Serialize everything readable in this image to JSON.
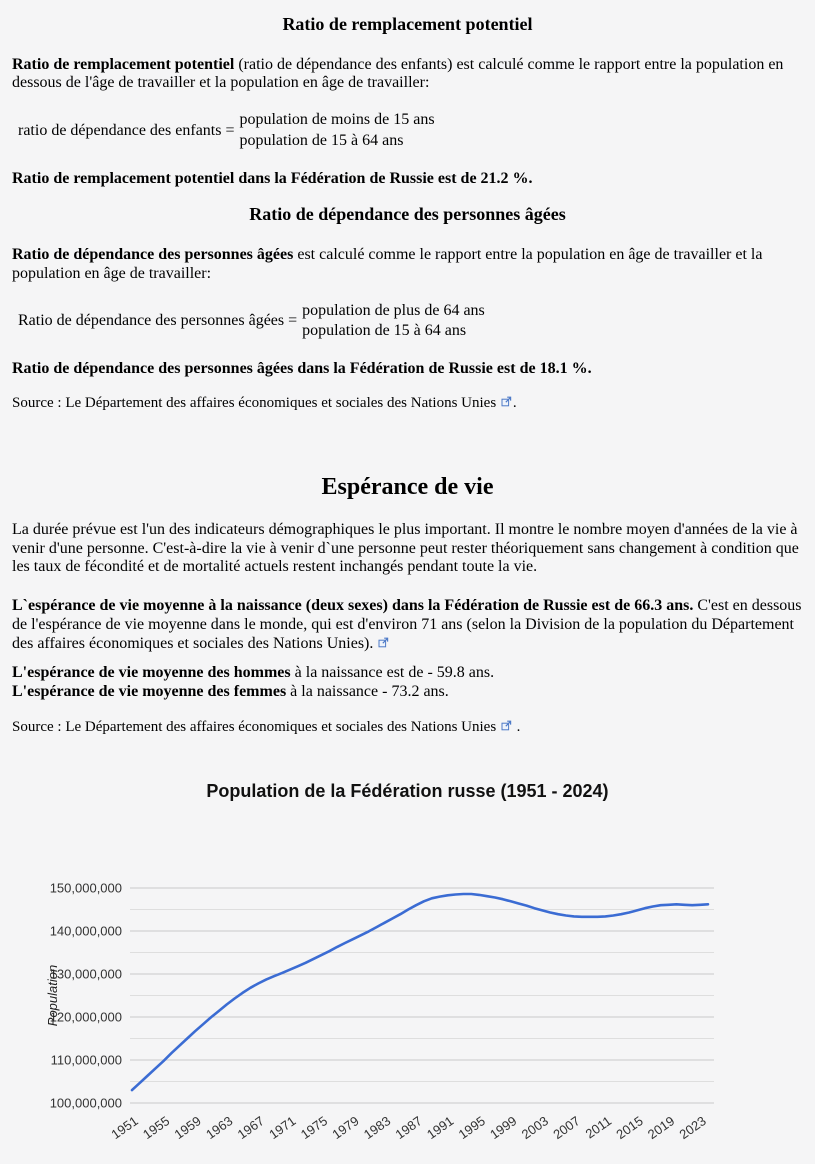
{
  "replacement_section": {
    "heading": "Ratio de remplacement potentiel",
    "definition_bold": "Ratio de remplacement potentiel",
    "definition_rest": " (ratio de dépendance des enfants) est calculé comme le rapport entre la population en dessous de l'âge de travailler et la population en âge de travailler:",
    "formula_label": "ratio de dépendance des enfants =",
    "formula_numerator": "population de moins de 15 ans",
    "formula_denominator": "population de 15 à 64 ans",
    "result": "Ratio de remplacement potentiel dans la Fédération de Russie est de 21.2 %."
  },
  "old_age_section": {
    "heading": "Ratio de dépendance des personnes âgées",
    "definition_bold": "Ratio de dépendance des personnes âgées",
    "definition_rest": " est calculé comme le rapport entre la population en âge de travailler et la population en âge de travailler:",
    "formula_label": "Ratio de dépendance des personnes âgées =",
    "formula_numerator": "population de plus de 64 ans",
    "formula_denominator": "population de 15 à 64 ans",
    "result": "Ratio de dépendance des personnes âgées dans la Fédération de Russie est de 18.1 %."
  },
  "source_line_1": {
    "prefix": "Source : ",
    "link_text": "Le Département des affaires économiques et sociales des Nations Unies",
    "suffix": "."
  },
  "life_expectancy_section": {
    "heading": "Espérance de vie",
    "intro": "La durée prévue est l'un des indicateurs démographiques le plus important. Il montre le nombre moyen d'années de la vie à venir d'une personne. C'est-à-dire la vie à venir d`une personne peut rester théoriquement sans changement à condition que les taux de fécondité et de mortalité actuels restent inchangés pendant toute la vie.",
    "average_bold": "L`espérance de vie moyenne à la naissance (deux sexes) dans la Fédération de Russie est de 66.3 ans.",
    "average_rest": " C'est en dessous de l'espérance de vie moyenne dans le monde, qui est d'environ 71 ans (selon la Division de la population du Département des affaires économiques et sociales des Nations Unies). ",
    "men_bold": "L'espérance de vie moyenne des hommes",
    "men_rest": " à la naissance est de - 59.8 ans.",
    "women_bold": "L'espérance de vie moyenne des femmes",
    "women_rest": " à la naissance - 73.2 ans."
  },
  "source_line_2": {
    "prefix": "Source : ",
    "link_text": "Le Département des affaires économiques et sociales des Nations Unies",
    "suffix": " ."
  },
  "chart_data": {
    "type": "line",
    "title": "Population de la Fédération russe (1951 - 2024)",
    "ylabel": "Population",
    "xlabel": "",
    "legend": "none",
    "grid": "horizontal-only, minor lines every 5,000,000",
    "ylim": [
      100000000,
      150000000
    ],
    "x_start": 1951,
    "x_end": 2024,
    "x_step": 1,
    "x_tick_labels": [
      "1951",
      "1955",
      "1959",
      "1963",
      "1967",
      "1971",
      "1975",
      "1979",
      "1983",
      "1987",
      "1991",
      "1995",
      "1999",
      "2003",
      "2007",
      "2011",
      "2015",
      "2019",
      "2023"
    ],
    "y_tick_labels": [
      "100,000,000",
      "110,000,000",
      "120,000,000",
      "130,000,000",
      "140,000,000",
      "150,000,000"
    ],
    "series": [
      {
        "name": "Population",
        "color": "#3b6cd3",
        "unit": "millions",
        "values_millions": [
          103.0,
          104.7,
          106.4,
          108.1,
          109.8,
          111.6,
          113.3,
          115.0,
          116.7,
          118.3,
          119.9,
          121.4,
          122.9,
          124.3,
          125.6,
          126.8,
          127.8,
          128.7,
          129.5,
          130.2,
          131.0,
          131.8,
          132.6,
          133.5,
          134.4,
          135.3,
          136.3,
          137.2,
          138.1,
          139.0,
          139.9,
          140.9,
          141.9,
          142.9,
          143.9,
          145.0,
          146.0,
          146.9,
          147.6,
          148.0,
          148.3,
          148.5,
          148.6,
          148.6,
          148.4,
          148.1,
          147.8,
          147.4,
          146.9,
          146.4,
          145.9,
          145.3,
          144.8,
          144.3,
          143.9,
          143.6,
          143.4,
          143.3,
          143.3,
          143.3,
          143.4,
          143.6,
          143.9,
          144.3,
          144.8,
          145.3,
          145.7,
          146.0,
          146.1,
          146.2,
          146.1,
          146.0,
          146.1,
          146.2
        ]
      }
    ],
    "gridline_major_color": "#c9c9c9",
    "gridline_minor_color": "#dedede",
    "background_color": "#f5f5f6"
  }
}
